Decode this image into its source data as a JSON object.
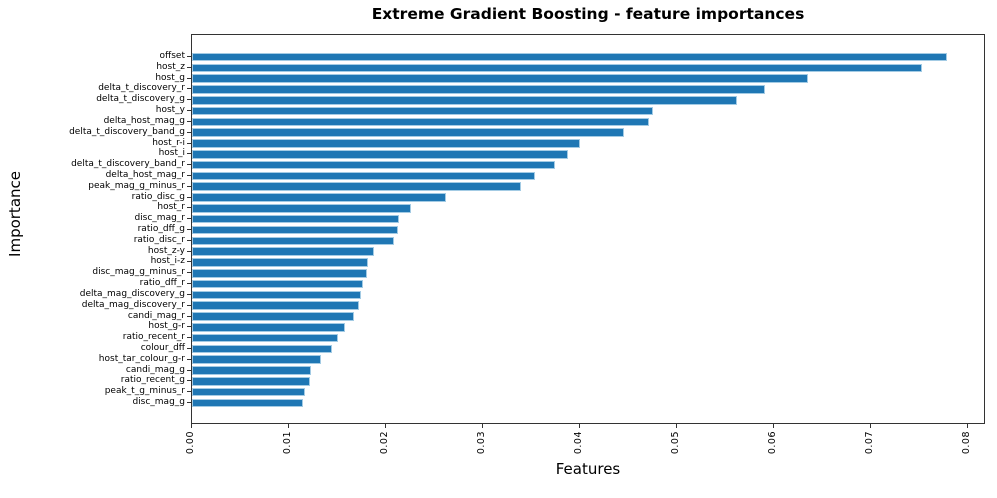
{
  "chart_data": {
    "type": "bar",
    "orientation": "horizontal",
    "title": "Extreme Gradient Boosting - feature importances",
    "xlabel": "Features",
    "ylabel": "Importance",
    "bar_color": "#1f77b4",
    "bar_edge_color": "#a3cbe4",
    "axis_color": "#333333",
    "background_color": "#ffffff",
    "xlim": [
      0,
      0.0819
    ],
    "x_ticks": [
      "0.00",
      "0.01",
      "0.02",
      "0.03",
      "0.04",
      "0.05",
      "0.06",
      "0.07",
      "0.08"
    ],
    "x_tick_rotation": 90,
    "grid": false,
    "legend": null,
    "categories": [
      "offset",
      "host_z",
      "host_g",
      "delta_t_discovery_r",
      "delta_t_discovery_g",
      "host_y",
      "delta_host_mag_g",
      "delta_t_discovery_band_g",
      "host_r-i",
      "host_i",
      "delta_t_discovery_band_r",
      "delta_host_mag_r",
      "peak_mag_g_minus_r",
      "ratio_disc_g",
      "host_r",
      "disc_mag_r",
      "ratio_dff_g",
      "ratio_disc_r",
      "host_z-y",
      "host_i-z",
      "disc_mag_g_minus_r",
      "ratio_dff_r",
      "delta_mag_discovery_g",
      "delta_mag_discovery_r",
      "candi_mag_r",
      "host_g-r",
      "ratio_recent_r",
      "colour_dff",
      "host_tar_colour_g-r",
      "candi_mag_g",
      "ratio_recent_g",
      "peak_t_g_minus_r",
      "disc_mag_g"
    ],
    "values": [
      0.0779,
      0.0753,
      0.0635,
      0.0591,
      0.0562,
      0.0476,
      0.0471,
      0.0446,
      0.04,
      0.0388,
      0.0374,
      0.0354,
      0.0339,
      0.0262,
      0.0226,
      0.0214,
      0.0212,
      0.0208,
      0.0188,
      0.0182,
      0.018,
      0.0176,
      0.0174,
      0.0172,
      0.0167,
      0.0158,
      0.0151,
      0.0144,
      0.0133,
      0.0123,
      0.0122,
      0.0117,
      0.0115
    ]
  }
}
